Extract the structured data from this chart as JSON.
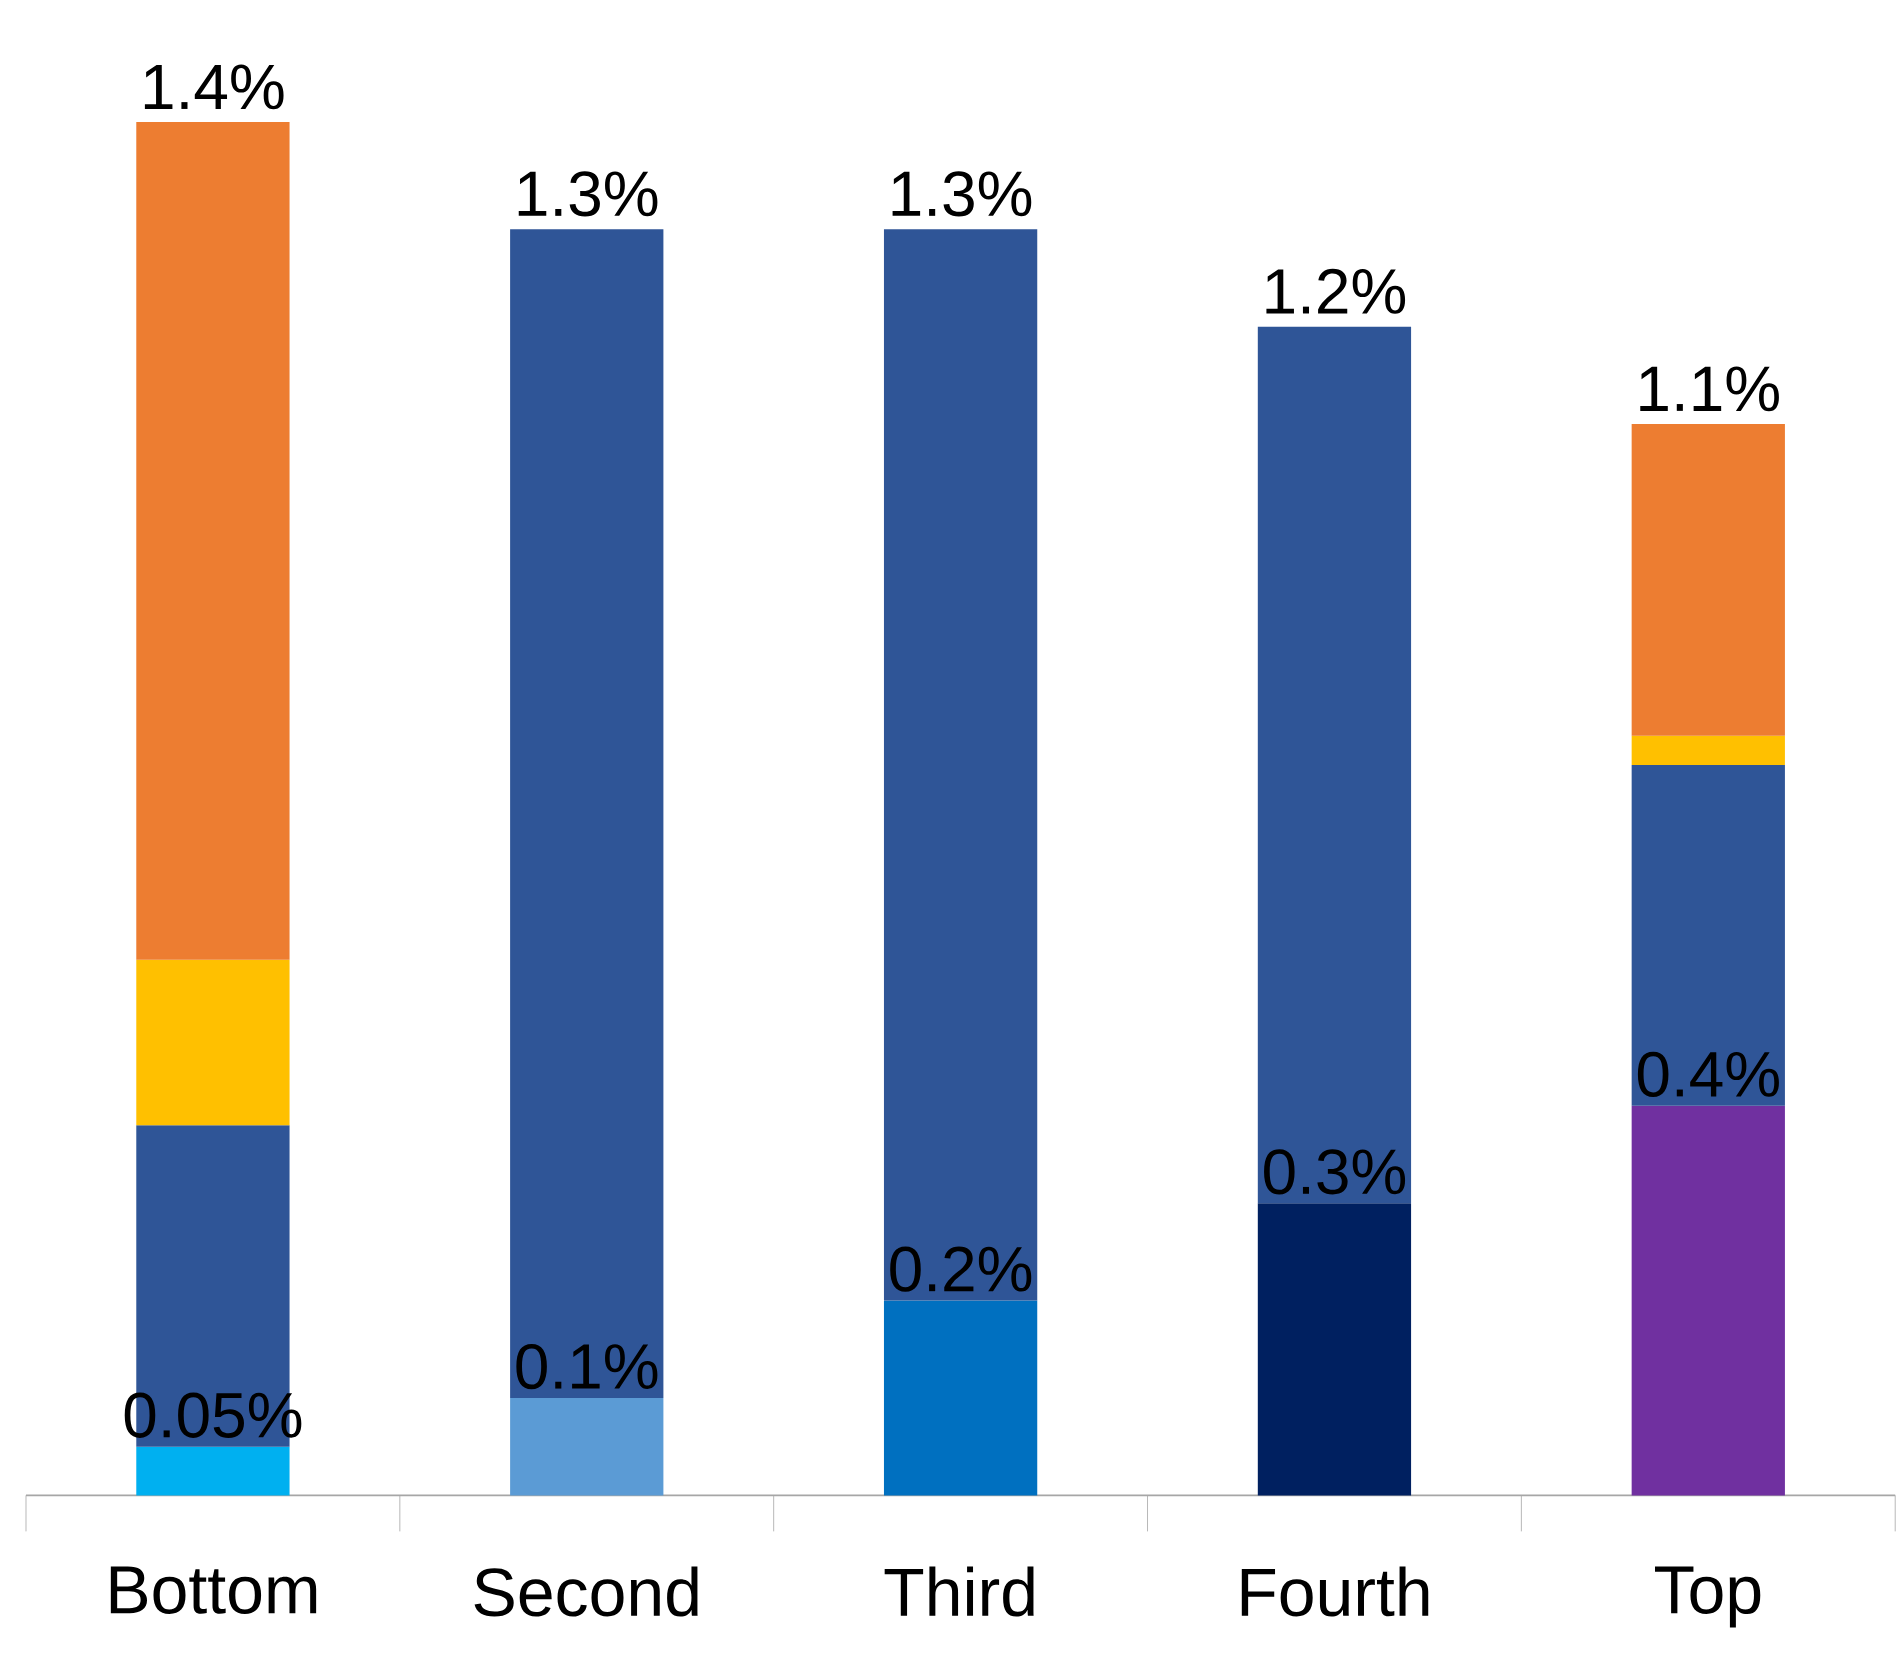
{
  "chart_data": {
    "type": "bar",
    "stacked": true,
    "categories": [
      "Bottom",
      "Second",
      "Third",
      "Fourth",
      "Top"
    ],
    "series": [
      {
        "colors": [
          "#00b0f0",
          "#5b9bd5",
          "#0070c0",
          "#002060",
          "#7030a0"
        ],
        "values": [
          0.05,
          0.1,
          0.2,
          0.3,
          0.4
        ],
        "value_labels": [
          "0.05%",
          "0.1%",
          "0.2%",
          "0.3%",
          "0.4%"
        ]
      },
      {
        "color": "#2f5597",
        "values": [
          0.33,
          1.2,
          1.1,
          0.9,
          0.35
        ]
      },
      {
        "color": "#ffc000",
        "values": [
          0.17,
          null,
          null,
          null,
          0.03
        ]
      },
      {
        "color": "#ed7d31",
        "values": [
          0.86,
          null,
          null,
          null,
          0.32
        ]
      }
    ],
    "totals": [
      "1.4%",
      "1.3%",
      "1.3%",
      "1.2%",
      "1.1%"
    ],
    "tick_labels": "x"
  }
}
